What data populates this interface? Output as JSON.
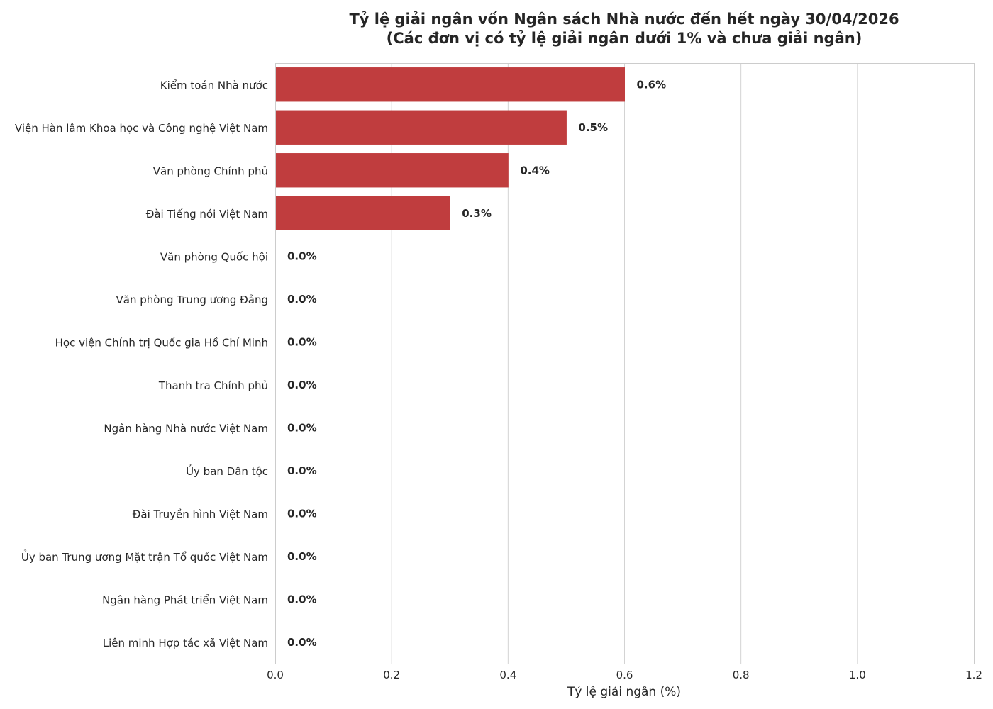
{
  "chart_data": {
    "type": "bar",
    "orientation": "horizontal",
    "title": [
      "Tỷ lệ giải ngân vốn Ngân sách Nhà nước đến hết ngày 30/04/2026",
      "(Các đơn vị có tỷ lệ giải ngân dưới 1% và chưa giải ngân)"
    ],
    "xlabel": "Tỷ lệ giải ngân (%)",
    "ylabel": "",
    "xlim": [
      0,
      1.2
    ],
    "xticks": [
      "0.0",
      "0.2",
      "0.4",
      "0.6",
      "0.8",
      "1.0",
      "1.2"
    ],
    "grid": "vertical",
    "bar_color": "#c03d3e",
    "categories": [
      "Kiểm toán Nhà nước",
      "Viện Hàn lâm Khoa học và Công nghệ Việt Nam",
      "Văn phòng Chính phủ",
      "Đài Tiếng nói Việt Nam",
      "Văn phòng Quốc hội",
      "Văn phòng Trung ương Đảng",
      "Học viện Chính trị Quốc gia Hồ Chí Minh",
      "Thanh tra Chính phủ",
      "Ngân hàng Nhà nước Việt Nam",
      "Ủy ban Dân tộc",
      "Đài Truyền hình Việt Nam",
      "Ủy ban Trung ương Mặt trận Tổ quốc Việt Nam",
      "Ngân hàng Phát triển Việt Nam",
      "Liên minh Hợp tác xã Việt Nam"
    ],
    "values": [
      0.6,
      0.5,
      0.4,
      0.3,
      0,
      0,
      0,
      0,
      0,
      0,
      0,
      0,
      0,
      0
    ],
    "data_labels": [
      "0.6%",
      "0.5%",
      "0.4%",
      "0.3%",
      "0.0%",
      "0.0%",
      "0.0%",
      "0.0%",
      "0.0%",
      "0.0%",
      "0.0%",
      "0.0%",
      "0.0%",
      "0.0%"
    ]
  }
}
